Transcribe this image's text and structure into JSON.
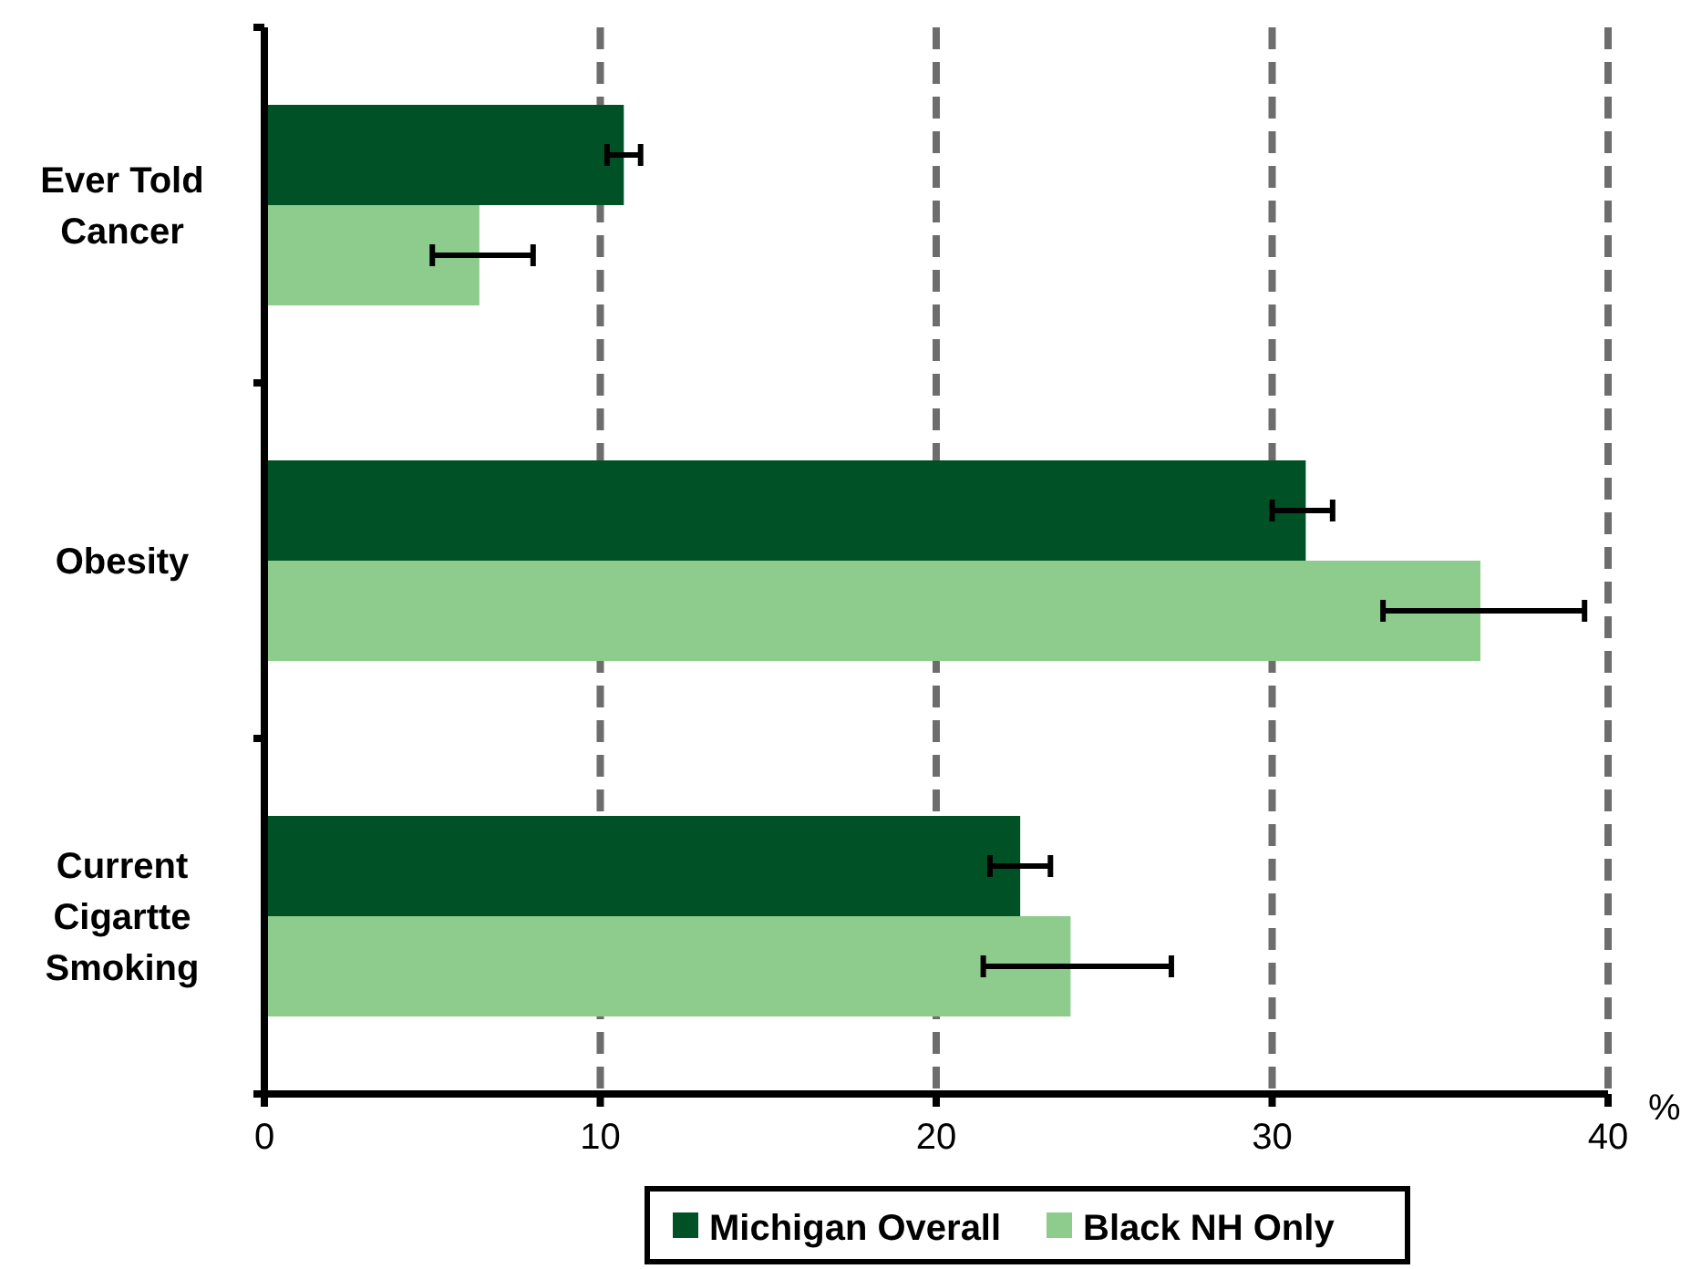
{
  "chart_data": {
    "type": "bar",
    "orientation": "horizontal",
    "categories": [
      "Ever Told Cancer",
      "Obesity",
      "Current Cigartte Smoking"
    ],
    "series": [
      {
        "name": "Michigan Overall",
        "color": "#005226",
        "values": [
          10.7,
          31.0,
          22.5
        ],
        "errors": [
          [
            10.2,
            11.2
          ],
          [
            30.0,
            31.8
          ],
          [
            21.6,
            23.4
          ]
        ]
      },
      {
        "name": "Black NH Only",
        "color": "#8dcc8c",
        "values": [
          6.4,
          36.2,
          24.0
        ],
        "errors": [
          [
            5.0,
            8.0
          ],
          [
            33.3,
            39.3
          ],
          [
            21.4,
            27.0
          ]
        ]
      }
    ],
    "xlabel": "%",
    "xlim": [
      0,
      40
    ],
    "xticks": [
      0,
      10,
      20,
      30,
      40
    ],
    "grid": "x",
    "legend": "bottom"
  }
}
